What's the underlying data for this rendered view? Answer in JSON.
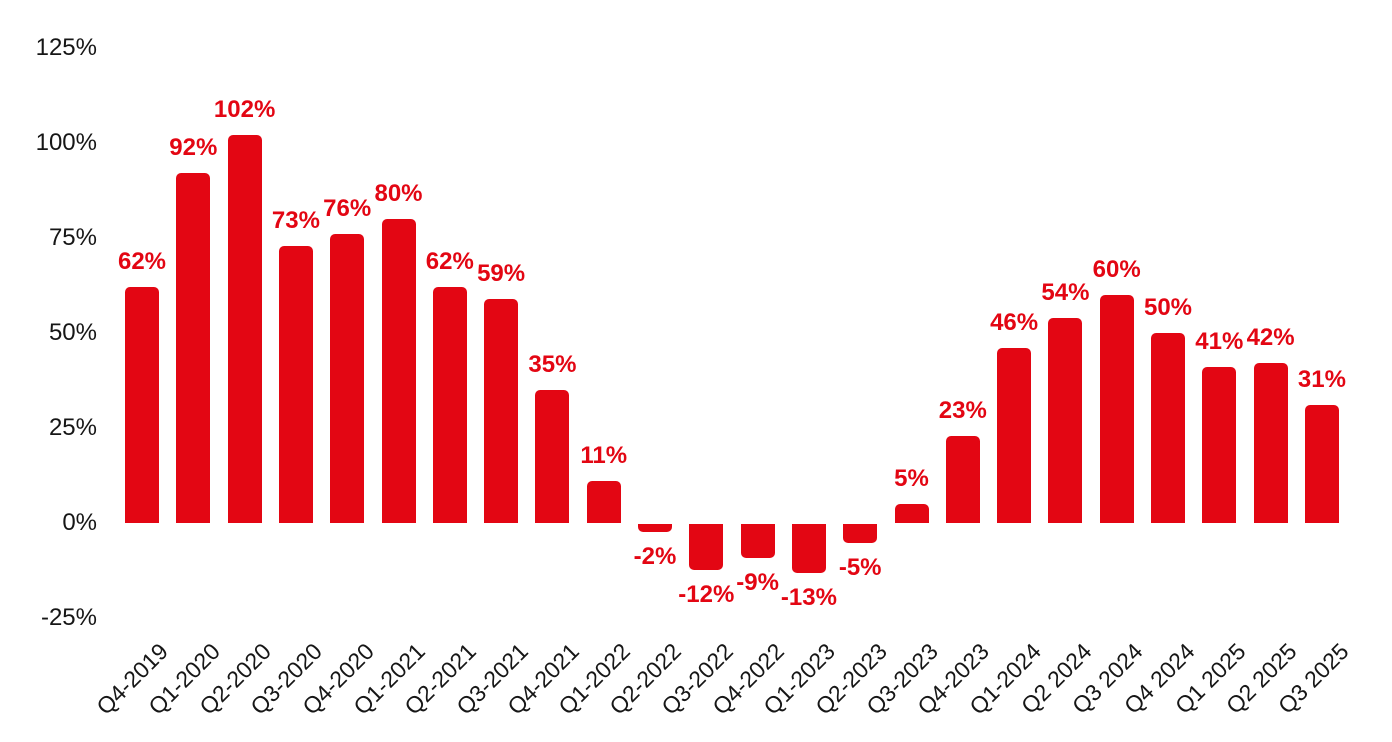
{
  "chart_data": {
    "type": "bar",
    "title": "",
    "xlabel": "",
    "ylabel": "",
    "categories": [
      "Q4-2019",
      "Q1-2020",
      "Q2-2020",
      "Q3-2020",
      "Q4-2020",
      "Q1-2021",
      "Q2-2021",
      "Q3-2021",
      "Q4-2021",
      "Q1-2022",
      "Q2-2022",
      "Q3-2022",
      "Q4-2022",
      "Q1-2023",
      "Q2-2023",
      "Q3-2023",
      "Q4-2023",
      "Q1-2024",
      "Q2 2024",
      "Q3 2024",
      "Q4 2024",
      "Q1 2025",
      "Q2 2025",
      "Q3 2025"
    ],
    "values": [
      62,
      92,
      102,
      73,
      76,
      80,
      62,
      59,
      35,
      11,
      -2,
      -12,
      -9,
      -13,
      -5,
      5,
      23,
      46,
      54,
      60,
      50,
      41,
      42,
      31
    ],
    "bar_labels": [
      "62%",
      "92%",
      "102%",
      "73%",
      "76%",
      "80%",
      "62%",
      "59%",
      "35%",
      "11%",
      "-2%",
      "-12%",
      "-9%",
      "-13%",
      "-5%",
      "5%",
      "23%",
      "46%",
      "54%",
      "60%",
      "50%",
      "41%",
      "42%",
      "31%"
    ],
    "y_ticks": [
      {
        "label": "125%",
        "value": 125
      },
      {
        "label": "100%",
        "value": 100
      },
      {
        "label": "75%",
        "value": 75
      },
      {
        "label": "50%",
        "value": 50
      },
      {
        "label": "25%",
        "value": 25
      },
      {
        "label": "0%",
        "value": 0
      },
      {
        "label": "-25%",
        "value": -25
      }
    ],
    "ylim": [
      -25,
      125
    ],
    "bar_color": "#e30613",
    "value_label_color": "#e30613",
    "axis_text_color": "#161616",
    "grid": false,
    "legend": false,
    "background_color": "#ffffff"
  }
}
